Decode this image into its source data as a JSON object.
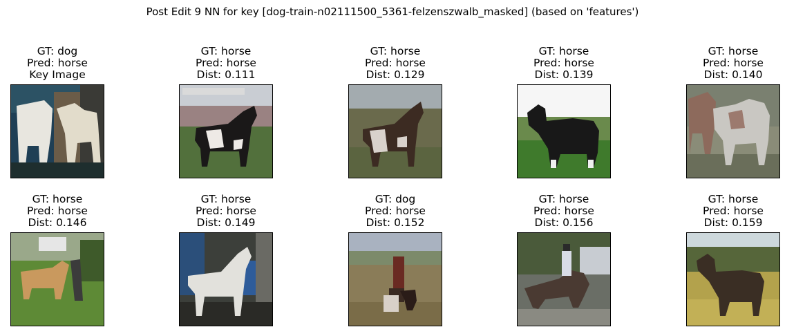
{
  "title": "Post Edit 9 NN for key [dog-train-n02111500_5361-felzenszwalb_masked] (based on 'features')",
  "panels": [
    {
      "gt": "GT: dog",
      "pred": "Pred: horse",
      "extra": "Key Image",
      "image": "two-white-horses",
      "palette": [
        "#24465a",
        "#d9d6cc",
        "#7a6a52",
        "#2a2a2a"
      ]
    },
    {
      "gt": "GT: horse",
      "pred": "Pred: horse",
      "extra": "Dist: 0.111",
      "image": "pinto-horse-field",
      "palette": [
        "#c2c6cd",
        "#8c7a78",
        "#4f6a3a",
        "#1c1a1a"
      ]
    },
    {
      "gt": "GT: horse",
      "pred": "Pred: horse",
      "extra": "Dist: 0.129",
      "image": "pinto-horse-pasture",
      "palette": [
        "#9aa3a7",
        "#6f6a4f",
        "#5a6440",
        "#3a2a22"
      ]
    },
    {
      "gt": "GT: horse",
      "pred": "Pred: horse",
      "extra": "Dist: 0.139",
      "image": "black-horse-grass",
      "palette": [
        "#f4f4f4",
        "#6c8a4e",
        "#3f7a2c",
        "#181818"
      ]
    },
    {
      "gt": "GT: horse",
      "pred": "Pred: horse",
      "extra": "Dist: 0.140",
      "image": "two-horses-standing",
      "palette": [
        "#6f7468",
        "#8c8c7a",
        "#5e6654",
        "#9b8a7e"
      ]
    },
    {
      "gt": "GT: horse",
      "pred": "Pred: horse",
      "extra": "Dist: 0.146",
      "image": "palomino-horse-meadow",
      "palette": [
        "#6c8f4a",
        "#5e8a36",
        "#c99a5e",
        "#3b3b3b"
      ]
    },
    {
      "gt": "GT: horse",
      "pred": "Pred: horse",
      "extra": "Dist: 0.149",
      "image": "white-horse-stable",
      "palette": [
        "#3c3f3a",
        "#2b4f7a",
        "#dcdcd6",
        "#4a4a44"
      ]
    },
    {
      "gt": "GT: dog",
      "pred": "Pred: horse",
      "extra": "Dist: 0.152",
      "image": "person-with-dog-field",
      "palette": [
        "#a9b2c0",
        "#8a7f58",
        "#7a6e4a",
        "#5a2a22"
      ]
    },
    {
      "gt": "GT: horse",
      "pred": "Pred: horse",
      "extra": "Dist: 0.156",
      "image": "rider-on-horse-arena",
      "palette": [
        "#3a4a30",
        "#7a7e78",
        "#4a3a32",
        "#c8ccd2"
      ]
    },
    {
      "gt": "GT: horse",
      "pred": "Pred: horse",
      "extra": "Dist: 0.159",
      "image": "brown-horse-yellow-field",
      "palette": [
        "#c8d4d8",
        "#56663a",
        "#b0a04a",
        "#3a2e24"
      ]
    }
  ]
}
